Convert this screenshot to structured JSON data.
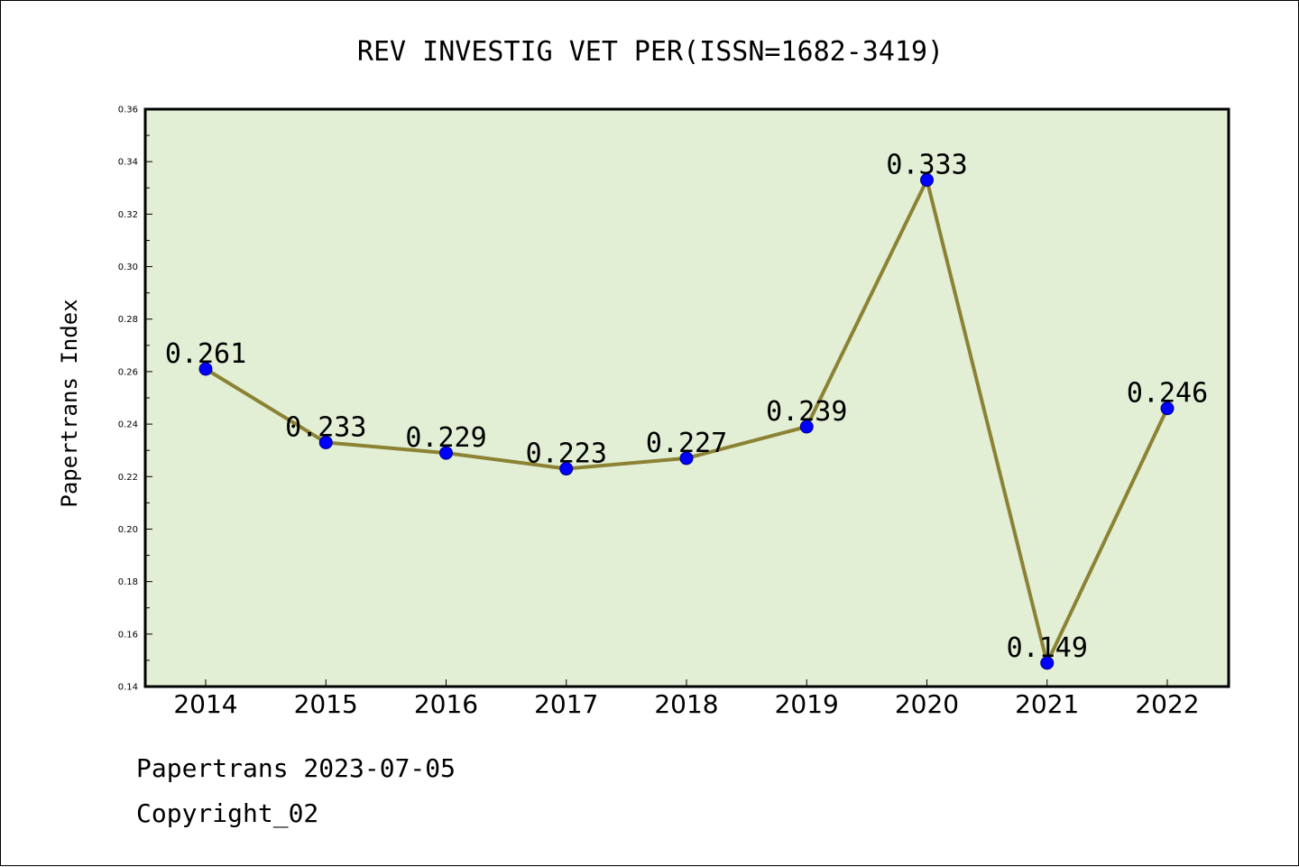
{
  "chart_data": {
    "type": "line",
    "title": "REV INVESTIG VET PER(ISSN=1682-3419)",
    "ylabel": "Papertrans Index",
    "xlabel": "",
    "categories": [
      "2014",
      "2015",
      "2016",
      "2017",
      "2018",
      "2019",
      "2020",
      "2021",
      "2022"
    ],
    "values": [
      0.261,
      0.233,
      0.229,
      0.223,
      0.227,
      0.239,
      0.333,
      0.149,
      0.246
    ],
    "data_labels": [
      "0.261",
      "0.233",
      "0.229",
      "0.223",
      "0.227",
      "0.239",
      "0.333",
      "0.149",
      "0.246"
    ],
    "ylim": [
      0.14,
      0.36
    ],
    "yticks": [
      "0.14",
      "0.16",
      "0.18",
      "0.20",
      "0.22",
      "0.24",
      "0.26",
      "0.28",
      "0.30",
      "0.32",
      "0.34",
      "0.36"
    ],
    "grid": false,
    "legend": "none",
    "colors": {
      "plot_background": "#e2efd4",
      "line": "#8b8234",
      "marker": "#0000ff"
    }
  },
  "footer": {
    "line1": "Papertrans 2023-07-05",
    "line2": "Copyright_02"
  }
}
